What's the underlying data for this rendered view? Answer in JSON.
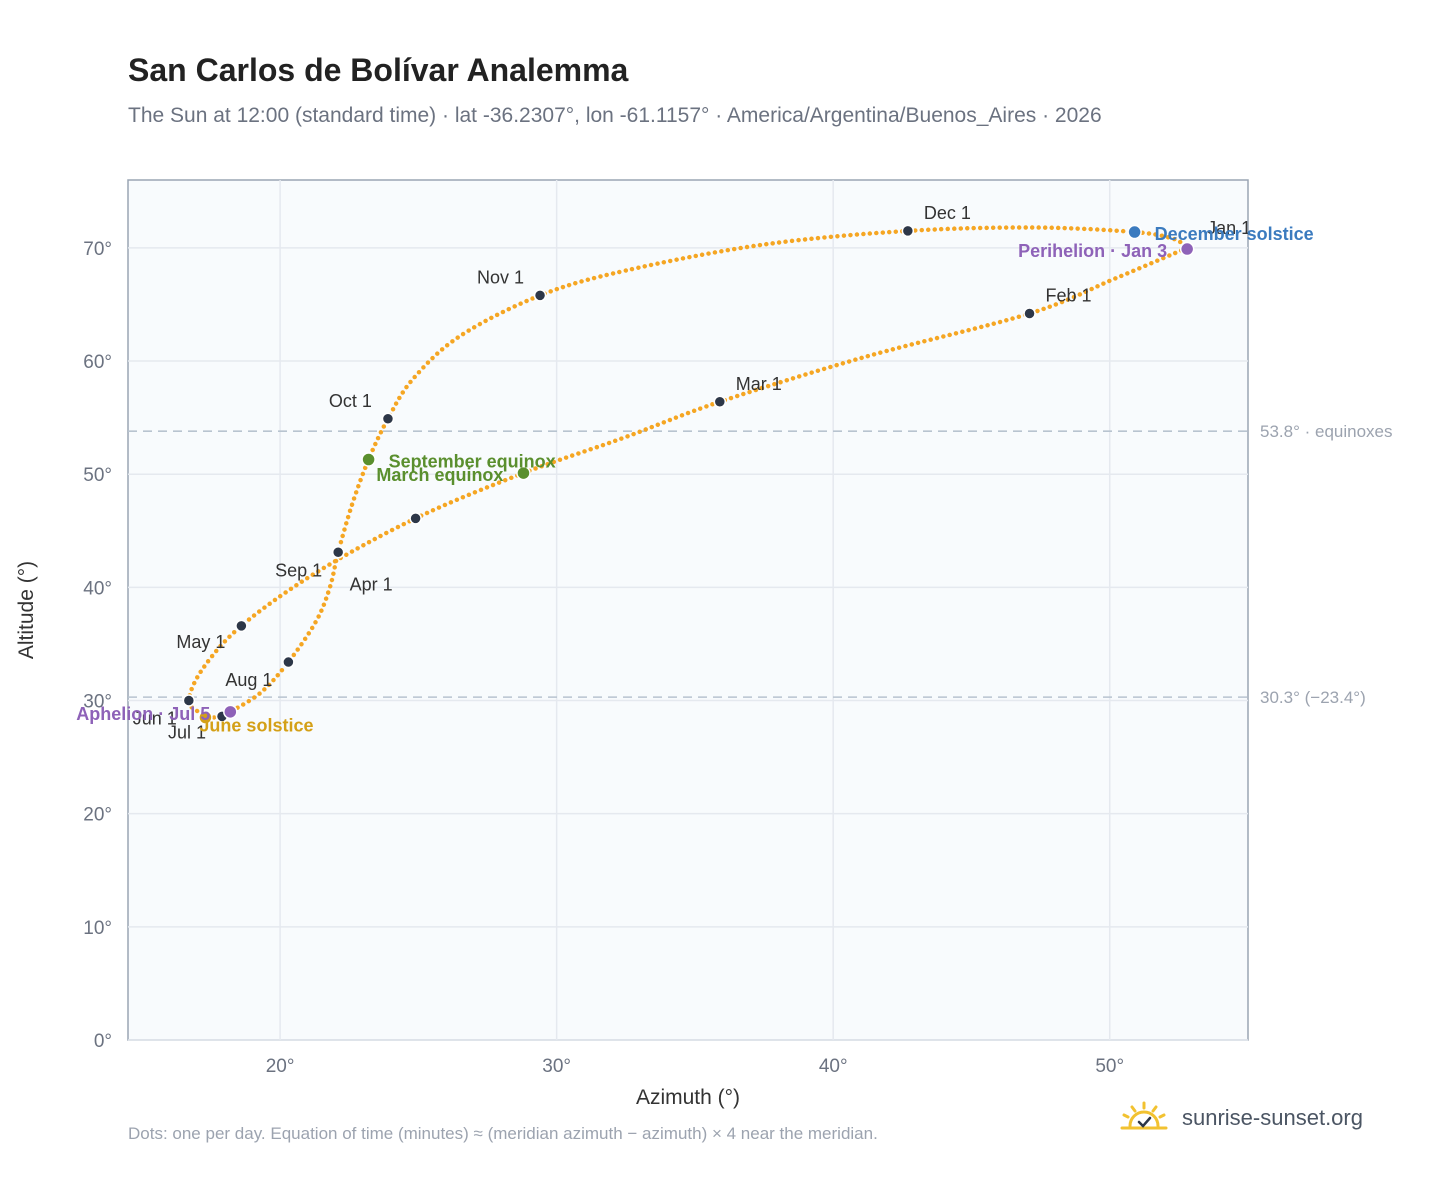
{
  "header": {
    "title": "San Carlos de Bolívar Analemma",
    "subtitle": "The Sun at 12:00 (standard time) · lat -36.2307°, lon -61.1157° · America/Argentina/Buenos_Aires · 2026"
  },
  "footer": {
    "note": "Dots: one per day. Equation of time (minutes) ≈ (meridian azimuth − azimuth) × 4 near the meridian.",
    "brand": "sunrise-sunset.org",
    "brand_icon": "sun-logo-icon"
  },
  "colors": {
    "path": "#f5a623",
    "month_marker": "#2d3748",
    "equinox": "#5a8f2e",
    "december_solstice": "#3b7bbf",
    "june_solstice": "#d4a017",
    "apsis": "#8e62b8",
    "plot_bg": "#f8fbfd",
    "grid": "#e5e9ef",
    "ref_line": "#b8c4d0"
  },
  "chart_data": {
    "type": "scatter",
    "xlabel": "Azimuth (°)",
    "ylabel": "Altitude (°)",
    "xlim": [
      14.5,
      55
    ],
    "ylim": [
      0,
      76
    ],
    "x_ticks": [
      20,
      30,
      40,
      50
    ],
    "x_tick_labels": [
      "20°",
      "30°",
      "40°",
      "50°"
    ],
    "y_ticks": [
      0,
      10,
      20,
      30,
      40,
      50,
      60,
      70
    ],
    "y_tick_labels": [
      "0°",
      "10°",
      "20°",
      "30°",
      "40°",
      "50°",
      "60°",
      "70°"
    ],
    "grid": true,
    "path_points": [
      {
        "date": "Jan 1",
        "az": 52.8,
        "alt": 70.0
      },
      {
        "date": "Jan 16",
        "az": 50.2,
        "alt": 67.3
      },
      {
        "date": "Feb 1",
        "az": 47.1,
        "alt": 64.2
      },
      {
        "date": "Feb 15",
        "az": 41.2,
        "alt": 60.4
      },
      {
        "date": "Mar 1",
        "az": 35.9,
        "alt": 56.4
      },
      {
        "date": "Mar 10",
        "az": 32.4,
        "alt": 53.2
      },
      {
        "date": "Mar 20",
        "az": 28.8,
        "alt": 50.1
      },
      {
        "date": "Apr 1",
        "az": 24.9,
        "alt": 46.1
      },
      {
        "date": "Apr 15",
        "az": 21.3,
        "alt": 41.3
      },
      {
        "date": "May 1",
        "az": 18.6,
        "alt": 36.6
      },
      {
        "date": "May 15",
        "az": 17.2,
        "alt": 32.8
      },
      {
        "date": "Jun 1",
        "az": 16.7,
        "alt": 30.0
      },
      {
        "date": "Jun 11",
        "az": 17.1,
        "alt": 28.9
      },
      {
        "date": "Jun 21",
        "az": 17.3,
        "alt": 28.5
      },
      {
        "date": "Jul 1",
        "az": 17.9,
        "alt": 28.6
      },
      {
        "date": "Jul 5",
        "az": 18.2,
        "alt": 29.0
      },
      {
        "date": "Jul 15",
        "az": 19.3,
        "alt": 30.7
      },
      {
        "date": "Aug 1",
        "az": 20.3,
        "alt": 33.4
      },
      {
        "date": "Aug 10",
        "az": 21.3,
        "alt": 37.0
      },
      {
        "date": "Aug 20",
        "az": 21.8,
        "alt": 40.0
      },
      {
        "date": "Sep 1",
        "az": 22.1,
        "alt": 43.1
      },
      {
        "date": "Sep 10",
        "az": 22.6,
        "alt": 47.3
      },
      {
        "date": "Sep 22",
        "az": 23.2,
        "alt": 51.3
      },
      {
        "date": "Oct 1",
        "az": 23.9,
        "alt": 54.9
      },
      {
        "date": "Oct 10",
        "az": 24.8,
        "alt": 58.4
      },
      {
        "date": "Oct 20",
        "az": 26.5,
        "alt": 62.2
      },
      {
        "date": "Nov 1",
        "az": 29.4,
        "alt": 65.8
      },
      {
        "date": "Nov 10",
        "az": 32.5,
        "alt": 68.0
      },
      {
        "date": "Nov 20",
        "az": 37.5,
        "alt": 70.3
      },
      {
        "date": "Dec 1",
        "az": 42.7,
        "alt": 71.5
      },
      {
        "date": "Dec 10",
        "az": 47.3,
        "alt": 71.8
      },
      {
        "date": "Dec 21",
        "az": 50.9,
        "alt": 71.4
      },
      {
        "date": "Dec 28",
        "az": 52.3,
        "alt": 70.8
      },
      {
        "date": "Dec 31",
        "az": 52.8,
        "alt": 70.0
      }
    ],
    "month_markers": [
      {
        "label": "Jan 1",
        "az": 52.8,
        "alt": 70.0
      },
      {
        "label": "Feb 1",
        "az": 47.1,
        "alt": 64.2
      },
      {
        "label": "Mar 1",
        "az": 35.9,
        "alt": 56.4
      },
      {
        "label": "Apr 1",
        "az": 24.9,
        "alt": 46.1
      },
      {
        "label": "May 1",
        "az": 18.6,
        "alt": 36.6
      },
      {
        "label": "Jun 1",
        "az": 16.7,
        "alt": 30.0
      },
      {
        "label": "Jul 1",
        "az": 17.9,
        "alt": 28.6
      },
      {
        "label": "Aug 1",
        "az": 20.3,
        "alt": 33.4
      },
      {
        "label": "Sep 1",
        "az": 22.1,
        "alt": 43.1
      },
      {
        "label": "Oct 1",
        "az": 23.9,
        "alt": 54.9
      },
      {
        "label": "Nov 1",
        "az": 29.4,
        "alt": 65.8
      },
      {
        "label": "Dec 1",
        "az": 42.7,
        "alt": 71.5
      }
    ],
    "events": [
      {
        "label": "March equinox",
        "az": 28.8,
        "alt": 50.1,
        "kind": "equinox"
      },
      {
        "label": "September equinox",
        "az": 23.2,
        "alt": 51.3,
        "kind": "equinox"
      },
      {
        "label": "December solstice",
        "az": 50.9,
        "alt": 71.4,
        "kind": "december_solstice"
      },
      {
        "label": "June solstice",
        "az": 17.3,
        "alt": 28.5,
        "kind": "june_solstice"
      },
      {
        "label": "Perihelion · Jan 3",
        "az": 52.8,
        "alt": 69.9,
        "kind": "apsis"
      },
      {
        "label": "Aphelion · Jul 5",
        "az": 18.2,
        "alt": 29.0,
        "kind": "apsis"
      }
    ],
    "reference_lines": [
      {
        "alt": 53.8,
        "label": "53.8° · equinoxes"
      },
      {
        "alt": 30.3,
        "label": "30.3° (−23.4°)"
      }
    ]
  }
}
